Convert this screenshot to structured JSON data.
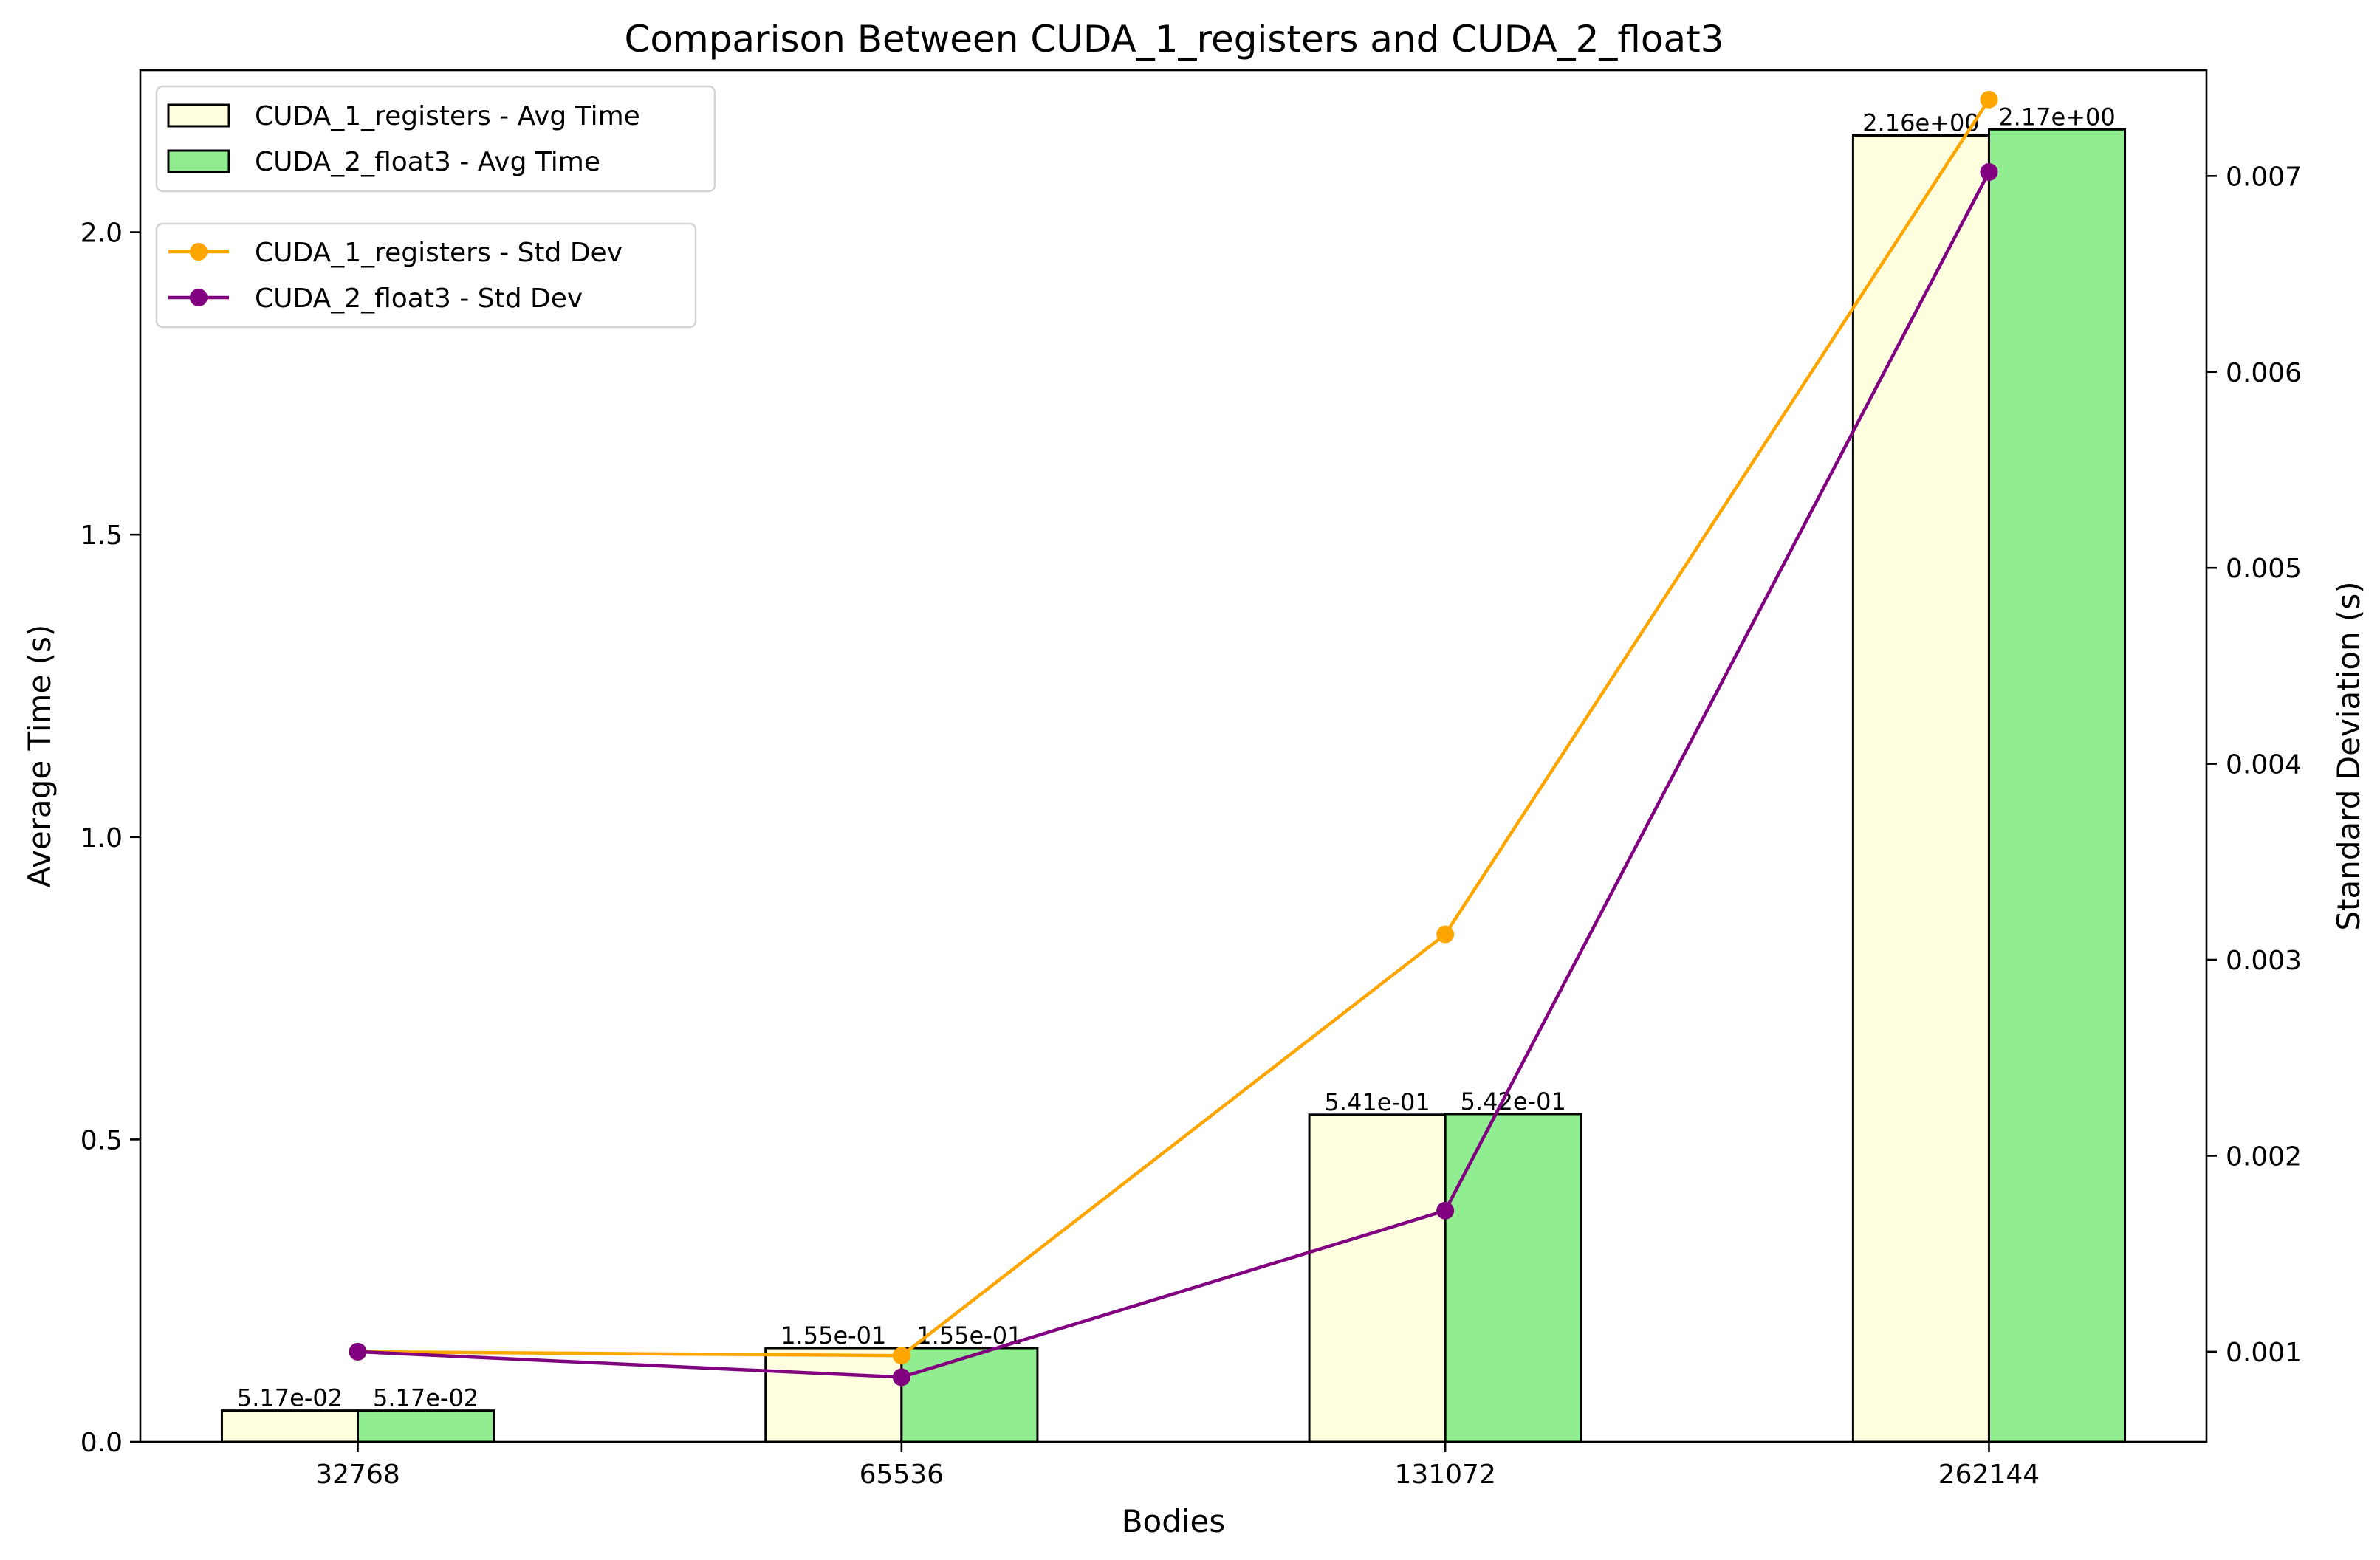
{
  "chart_data": {
    "type": "bar",
    "title": "Comparison Between CUDA_1_registers and CUDA_2_float3",
    "xlabel": "Bodies",
    "ylabel": "Average Time (s)",
    "y2label": "Standard Deviation (s)",
    "categories": [
      "32768",
      "65536",
      "131072",
      "262144"
    ],
    "ylim": [
      0,
      2.268
    ],
    "yticks": [
      "0.0",
      "0.5",
      "1.0",
      "1.5",
      "2.0"
    ],
    "y2lim": [
      0.00054,
      0.00754
    ],
    "y2ticks": [
      "0.001",
      "0.002",
      "0.003",
      "0.004",
      "0.005",
      "0.006",
      "0.007"
    ],
    "bar_series": [
      {
        "name": "CUDA_1_registers - Avg Time",
        "color": "#ffffe0",
        "values": [
          0.0517,
          0.155,
          0.541,
          2.16
        ],
        "labels": [
          "5.17e-02",
          "1.55e-01",
          "5.41e-01",
          "2.16e+00"
        ]
      },
      {
        "name": "CUDA_2_float3 - Avg Time",
        "color": "#90ee90",
        "values": [
          0.0517,
          0.155,
          0.542,
          2.17
        ],
        "labels": [
          "5.17e-02",
          "1.55e-01",
          "5.42e-01",
          "2.17e+00"
        ]
      }
    ],
    "line_series": [
      {
        "name": "CUDA_1_registers - Std Dev",
        "color": "#ffa500",
        "values": [
          0.001,
          0.00098,
          0.00313,
          0.00739
        ]
      },
      {
        "name": "CUDA_2_float3 - Std Dev",
        "color": "#800080",
        "values": [
          0.001,
          0.00087,
          0.00172,
          0.00702
        ]
      }
    ],
    "bar_legend_placement": "top-left",
    "line_legend_placement": "top-left, below bar legend",
    "grid": false
  }
}
